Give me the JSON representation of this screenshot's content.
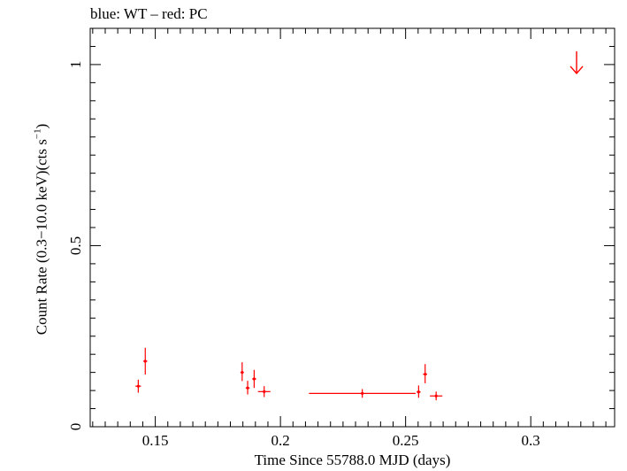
{
  "chart_data": {
    "type": "scatter",
    "title": "blue: WT – red: PC",
    "xlabel": "Time Since 55788.0 MJD (days)",
    "ylabel": {
      "main": "Count Rate (0.3−10.0 keV)(cts s",
      "exponent": "−1",
      "closing": ")"
    },
    "xlim": [
      0.124,
      0.3335
    ],
    "ylim": [
      0,
      1.1
    ],
    "x_ticks": [
      {
        "value": 0.15,
        "label": "0.15"
      },
      {
        "value": 0.2,
        "label": "0.2"
      },
      {
        "value": 0.25,
        "label": "0.25"
      },
      {
        "value": 0.3,
        "label": "0.3"
      }
    ],
    "y_ticks": [
      {
        "value": 0,
        "label": "0"
      },
      {
        "value": 0.5,
        "label": "0.5"
      },
      {
        "value": 1,
        "label": "1"
      }
    ],
    "grid": false,
    "series": [
      {
        "color": "#ff0000",
        "points": [
          {
            "x": 0.1432,
            "xerr": 0.0011,
            "y": 0.112,
            "yerr_low": 0.018,
            "yerr_high": 0.018
          },
          {
            "x": 0.146,
            "xerr": 0.0008,
            "y": 0.181,
            "yerr_low": 0.037,
            "yerr_high": 0.037
          },
          {
            "x": 0.1847,
            "xerr": 0.0007,
            "y": 0.15,
            "yerr_low": 0.024,
            "yerr_high": 0.028
          },
          {
            "x": 0.1869,
            "xerr": 0.0008,
            "y": 0.107,
            "yerr_low": 0.018,
            "yerr_high": 0.02
          },
          {
            "x": 0.1895,
            "xerr": 0.0008,
            "y": 0.132,
            "yerr_low": 0.025,
            "yerr_high": 0.025
          },
          {
            "x": 0.1935,
            "xerr": 0.0025,
            "y": 0.097,
            "yerr_low": 0.015,
            "yerr_high": 0.015
          },
          {
            "x": 0.2327,
            "xerr": 0.0213,
            "y": 0.092,
            "yerr_low": 0.012,
            "yerr_high": 0.012
          },
          {
            "x": 0.2552,
            "xerr": 0.0008,
            "y": 0.096,
            "yerr_low": 0.016,
            "yerr_high": 0.018
          },
          {
            "x": 0.2578,
            "xerr": 0.0008,
            "y": 0.145,
            "yerr_low": 0.025,
            "yerr_high": 0.028
          },
          {
            "x": 0.2622,
            "xerr": 0.0025,
            "y": 0.085,
            "yerr_low": 0.012,
            "yerr_high": 0.012
          }
        ],
        "upper_limits": [
          {
            "x": 0.3183,
            "y": 1.0
          }
        ]
      }
    ]
  }
}
